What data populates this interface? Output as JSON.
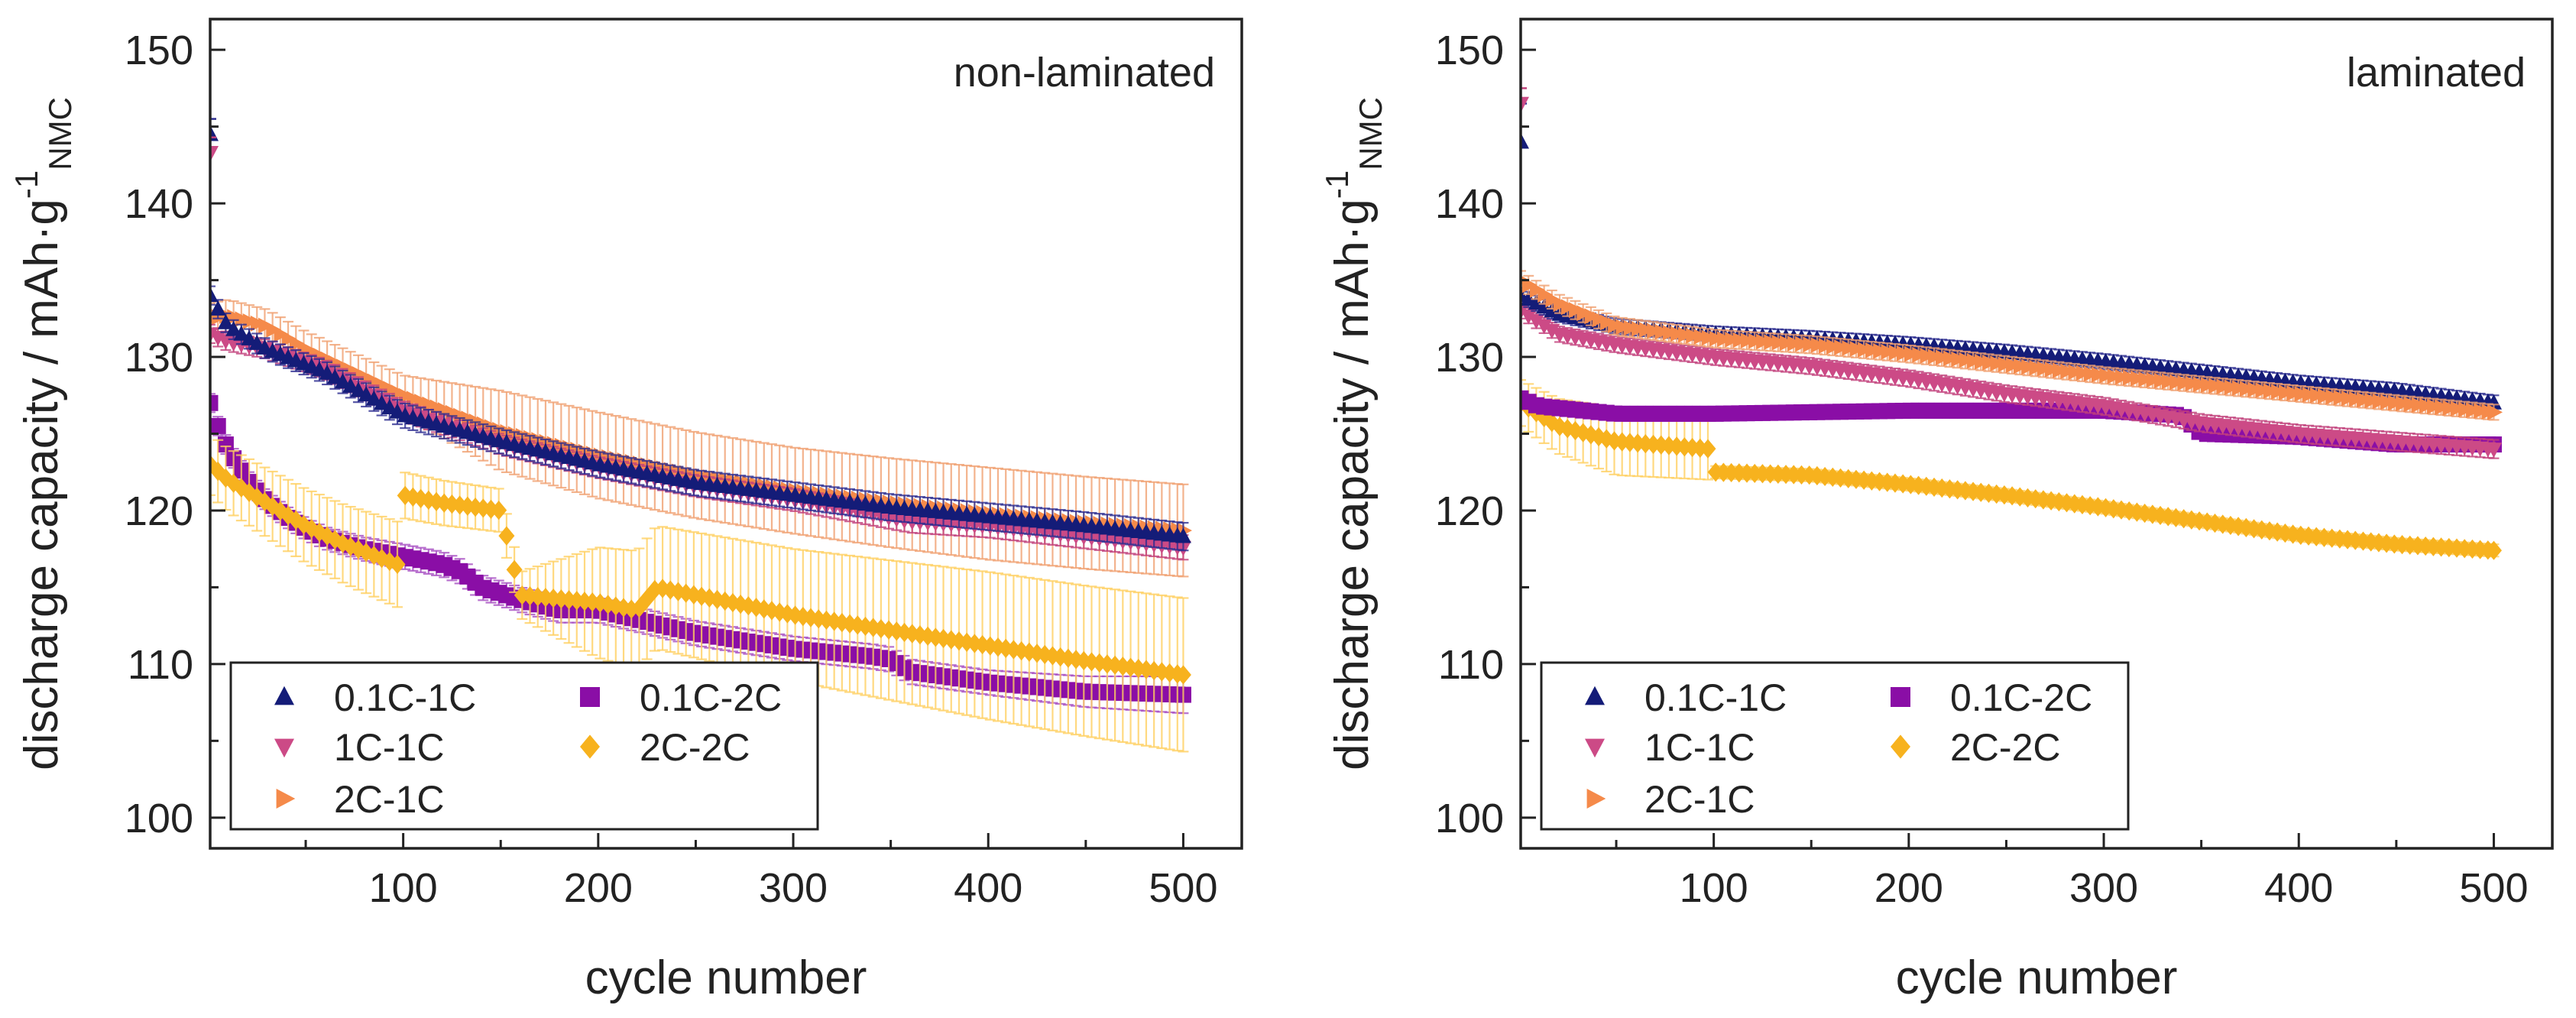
{
  "chart_data": [
    {
      "type": "scatter",
      "title": "non-laminated",
      "xlabel": "cycle number",
      "ylabel": {
        "main": "discharge capacity / mAh·g",
        "sup": "-1",
        "sub": "NMC"
      },
      "xlim": [
        1,
        530
      ],
      "ylim": [
        98,
        152
      ],
      "xticks": [
        100,
        200,
        300,
        400,
        500
      ],
      "yticks": [
        100,
        110,
        120,
        130,
        140,
        150
      ],
      "legend": [
        [
          "0.1C-1C",
          "0.1C-2C"
        ],
        [
          "1C-1C",
          "2C-2C"
        ],
        [
          "2C-1C"
        ]
      ],
      "series": [
        {
          "name": "0.1C-2C",
          "marker": "square",
          "color": "#8a0ea6",
          "error_color": "#a64dc2",
          "points": [
            [
              1,
              127
            ],
            [
              5,
              125.5
            ],
            [
              10,
              124
            ],
            [
              20,
              122
            ],
            [
              30,
              120.6
            ],
            [
              40,
              119.6
            ],
            [
              50,
              118.8
            ],
            [
              60,
              118.2
            ],
            [
              80,
              117.5
            ],
            [
              100,
              117
            ],
            [
              120,
              116.5
            ],
            [
              130,
              116
            ],
            [
              140,
              115
            ],
            [
              160,
              114.2
            ],
            [
              180,
              113.5
            ],
            [
              200,
              113.5
            ],
            [
              250,
              112
            ],
            [
              300,
              111
            ],
            [
              340,
              110.5
            ],
            [
              350,
              110.3
            ],
            [
              360,
              109.5
            ],
            [
              400,
              108.8
            ],
            [
              450,
              108.2
            ],
            [
              500,
              108
            ]
          ],
          "err": [
            [
              1,
              0.6
            ],
            [
              100,
              0.8
            ],
            [
              200,
              0.8
            ],
            [
              300,
              0.8
            ],
            [
              400,
              0.8
            ],
            [
              500,
              1.2
            ]
          ]
        },
        {
          "name": "2C-2C",
          "marker": "diamond",
          "color": "#f7b21e",
          "error_color": "#ffd060",
          "points": [
            [
              1,
              123
            ],
            [
              10,
              122
            ],
            [
              30,
              120.5
            ],
            [
              50,
              119
            ],
            [
              70,
              117.8
            ],
            [
              99,
              116.4
            ],
            [
              100,
              121
            ],
            [
              120,
              120.5
            ],
            [
              150,
              120
            ],
            [
              160,
              114.5
            ],
            [
              200,
              114
            ],
            [
              220,
              113.5
            ],
            [
              230,
              115
            ],
            [
              300,
              113.2
            ],
            [
              350,
              112.2
            ],
            [
              400,
              111.2
            ],
            [
              450,
              110.2
            ],
            [
              500,
              109.3
            ]
          ],
          "err": [
            [
              1,
              2
            ],
            [
              99,
              2.8
            ],
            [
              100,
              1.5
            ],
            [
              150,
              1.4
            ],
            [
              160,
              1.5
            ],
            [
              200,
              3.6
            ],
            [
              230,
              4
            ],
            [
              300,
              4.3
            ],
            [
              400,
              4.8
            ],
            [
              500,
              5
            ]
          ]
        },
        {
          "name": "2C-1C",
          "marker": "triangle-right",
          "color": "#f58a4a",
          "error_color": "#f0a070",
          "points": [
            [
              1,
              132.5
            ],
            [
              10,
              132.7
            ],
            [
              30,
              132
            ],
            [
              50,
              130.5
            ],
            [
              70,
              129.3
            ],
            [
              100,
              127.5
            ],
            [
              150,
              125.2
            ],
            [
              200,
              123.6
            ],
            [
              250,
              122.3
            ],
            [
              300,
              121.3
            ],
            [
              350,
              120.5
            ],
            [
              400,
              119.8
            ],
            [
              450,
              119.2
            ],
            [
              500,
              118.7
            ]
          ],
          "err": [
            [
              1,
              1
            ],
            [
              100,
              1.3
            ],
            [
              150,
              2.6
            ],
            [
              200,
              2.8
            ],
            [
              300,
              2.8
            ],
            [
              400,
              3
            ],
            [
              500,
              3
            ]
          ]
        },
        {
          "name": "1C-1C",
          "marker": "triangle-down",
          "color": "#cc4a86",
          "error_color": "#c0407a",
          "points": [
            [
              1,
              131.5
            ],
            [
              10,
              131
            ],
            [
              30,
              130.5
            ],
            [
              60,
              129.2
            ],
            [
              100,
              126.5
            ],
            [
              150,
              124.3
            ],
            [
              200,
              122.8
            ],
            [
              250,
              121.6
            ],
            [
              300,
              120.7
            ],
            [
              360,
              119.3
            ],
            [
              400,
              119
            ],
            [
              450,
              118.3
            ],
            [
              500,
              117.6
            ]
          ],
          "err": [
            [
              1,
              0.6
            ],
            [
              500,
              0.8
            ]
          ]
        },
        {
          "name": "0.1C-1C",
          "marker": "triangle-up",
          "color": "#141c78",
          "error_color": "#2c2c90",
          "points": [
            [
              1,
              134
            ],
            [
              10,
              132
            ],
            [
              30,
              130.5
            ],
            [
              60,
              129
            ],
            [
              100,
              126.2
            ],
            [
              150,
              124.5
            ],
            [
              200,
              123
            ],
            [
              250,
              121.8
            ],
            [
              300,
              121
            ],
            [
              350,
              120.2
            ],
            [
              400,
              119.6
            ],
            [
              450,
              119
            ],
            [
              500,
              118.3
            ]
          ],
          "err": [
            [
              1,
              0.6
            ],
            [
              100,
              0.8
            ],
            [
              500,
              0.9
            ]
          ]
        }
      ],
      "outliers": [
        {
          "series": "0.1C-1C",
          "x": 1,
          "y": 144.5,
          "err": 1
        },
        {
          "series": "1C-1C",
          "x": 1,
          "y": 143.3,
          "err": 1
        }
      ]
    },
    {
      "type": "scatter",
      "title": "laminated",
      "xlabel": "cycle number",
      "ylabel": {
        "main": "discharge capacity / mAh·g",
        "sup": "-1",
        "sub": "NMC"
      },
      "xlim": [
        1,
        530
      ],
      "ylim": [
        98,
        152
      ],
      "xticks": [
        100,
        200,
        300,
        400,
        500
      ],
      "yticks": [
        100,
        110,
        120,
        130,
        140,
        150
      ],
      "legend": [
        [
          "0.1C-1C",
          "0.1C-2C"
        ],
        [
          "1C-1C",
          "2C-2C"
        ],
        [
          "2C-1C"
        ]
      ],
      "series": [
        {
          "name": "2C-2C",
          "marker": "diamond",
          "color": "#f7b21e",
          "error_color": "#ffd060",
          "points": [
            [
              1,
              127
            ],
            [
              20,
              125.5
            ],
            [
              50,
              124.5
            ],
            [
              99,
              124
            ],
            [
              100,
              122.5
            ],
            [
              150,
              122.3
            ],
            [
              200,
              121.7
            ],
            [
              250,
              121
            ],
            [
              300,
              120.2
            ],
            [
              350,
              119.3
            ],
            [
              400,
              118.4
            ],
            [
              450,
              117.8
            ],
            [
              500,
              117.4
            ]
          ],
          "err": [
            [
              1,
              1.5
            ],
            [
              50,
              2.2
            ],
            [
              99,
              2
            ],
            [
              100,
              0.4
            ],
            [
              500,
              0.4
            ]
          ]
        },
        {
          "name": "0.1C-2C",
          "marker": "square",
          "color": "#8a0ea6",
          "error_color": "#a64dc2",
          "points": [
            [
              1,
              127.3
            ],
            [
              10,
              126.8
            ],
            [
              50,
              126.3
            ],
            [
              100,
              126.3
            ],
            [
              150,
              126.4
            ],
            [
              200,
              126.5
            ],
            [
              300,
              126.5
            ],
            [
              340,
              126.2
            ],
            [
              350,
              125
            ],
            [
              400,
              124.8
            ],
            [
              450,
              124.3
            ],
            [
              500,
              124.3
            ]
          ],
          "err": [
            [
              1,
              0.4
            ],
            [
              500,
              0.4
            ]
          ]
        },
        {
          "name": "1C-1C",
          "marker": "triangle-down",
          "color": "#cc4a86",
          "error_color": "#c0407a",
          "points": [
            [
              1,
              133
            ],
            [
              20,
              131.5
            ],
            [
              50,
              130.8
            ],
            [
              100,
              130
            ],
            [
              150,
              129.4
            ],
            [
              200,
              128.6
            ],
            [
              250,
              127.6
            ],
            [
              300,
              126.8
            ],
            [
              350,
              125.7
            ],
            [
              400,
              125
            ],
            [
              450,
              124.5
            ],
            [
              500,
              124
            ]
          ],
          "err": [
            [
              1,
              0.5
            ],
            [
              500,
              0.6
            ]
          ]
        },
        {
          "name": "0.1C-1C",
          "marker": "triangle-up",
          "color": "#141c78",
          "error_color": "#2c2c90",
          "points": [
            [
              1,
              134
            ],
            [
              20,
              132.8
            ],
            [
              50,
              132
            ],
            [
              100,
              131.5
            ],
            [
              150,
              131.2
            ],
            [
              200,
              130.8
            ],
            [
              250,
              130.3
            ],
            [
              300,
              129.7
            ],
            [
              350,
              129
            ],
            [
              400,
              128.3
            ],
            [
              450,
              127.8
            ],
            [
              500,
              127
            ]
          ],
          "err": [
            [
              1,
              0.5
            ],
            [
              500,
              0.5
            ]
          ]
        },
        {
          "name": "2C-1C",
          "marker": "triangle-right",
          "color": "#f58a4a",
          "error_color": "#f0a070",
          "points": [
            [
              1,
              135
            ],
            [
              20,
              133.5
            ],
            [
              50,
              132
            ],
            [
              100,
              131.2
            ],
            [
              150,
              130.8
            ],
            [
              200,
              130.2
            ],
            [
              250,
              129.5
            ],
            [
              300,
              128.8
            ],
            [
              350,
              128.2
            ],
            [
              400,
              127.6
            ],
            [
              450,
              127
            ],
            [
              500,
              126.4
            ]
          ],
          "err": [
            [
              1,
              0.6
            ],
            [
              500,
              0.5
            ]
          ]
        }
      ],
      "outliers": [
        {
          "series": "0.1C-1C",
          "x": 1,
          "y": 144,
          "err": 2.5
        },
        {
          "series": "1C-1C",
          "x": 1,
          "y": 146.5,
          "err": 1
        }
      ]
    }
  ]
}
